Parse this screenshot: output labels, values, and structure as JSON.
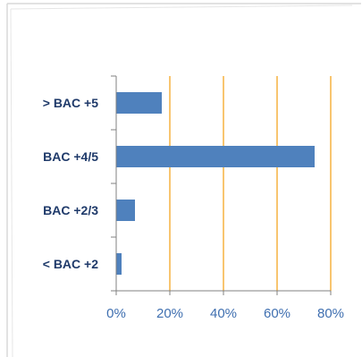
{
  "chart_data": {
    "type": "bar",
    "orientation": "horizontal",
    "categories": [
      "> BAC +5",
      "BAC +4/5",
      "BAC +2/3",
      "< BAC +2"
    ],
    "values": [
      0.17,
      0.74,
      0.07,
      0.02
    ],
    "xlim": [
      0,
      0.8
    ],
    "xticks": [
      0,
      0.2,
      0.4,
      0.6,
      0.8
    ],
    "xtick_labels": [
      "0%",
      "20%",
      "40%",
      "60%",
      "80%"
    ],
    "grid": "vertical",
    "title": "",
    "xlabel": "",
    "ylabel": "",
    "colors": {
      "bar": "#4f81bd",
      "gridline": "#f5a623",
      "axis": "#808080",
      "category_text": "#1f3a6a",
      "tick_text": "#3f6fb0"
    }
  }
}
